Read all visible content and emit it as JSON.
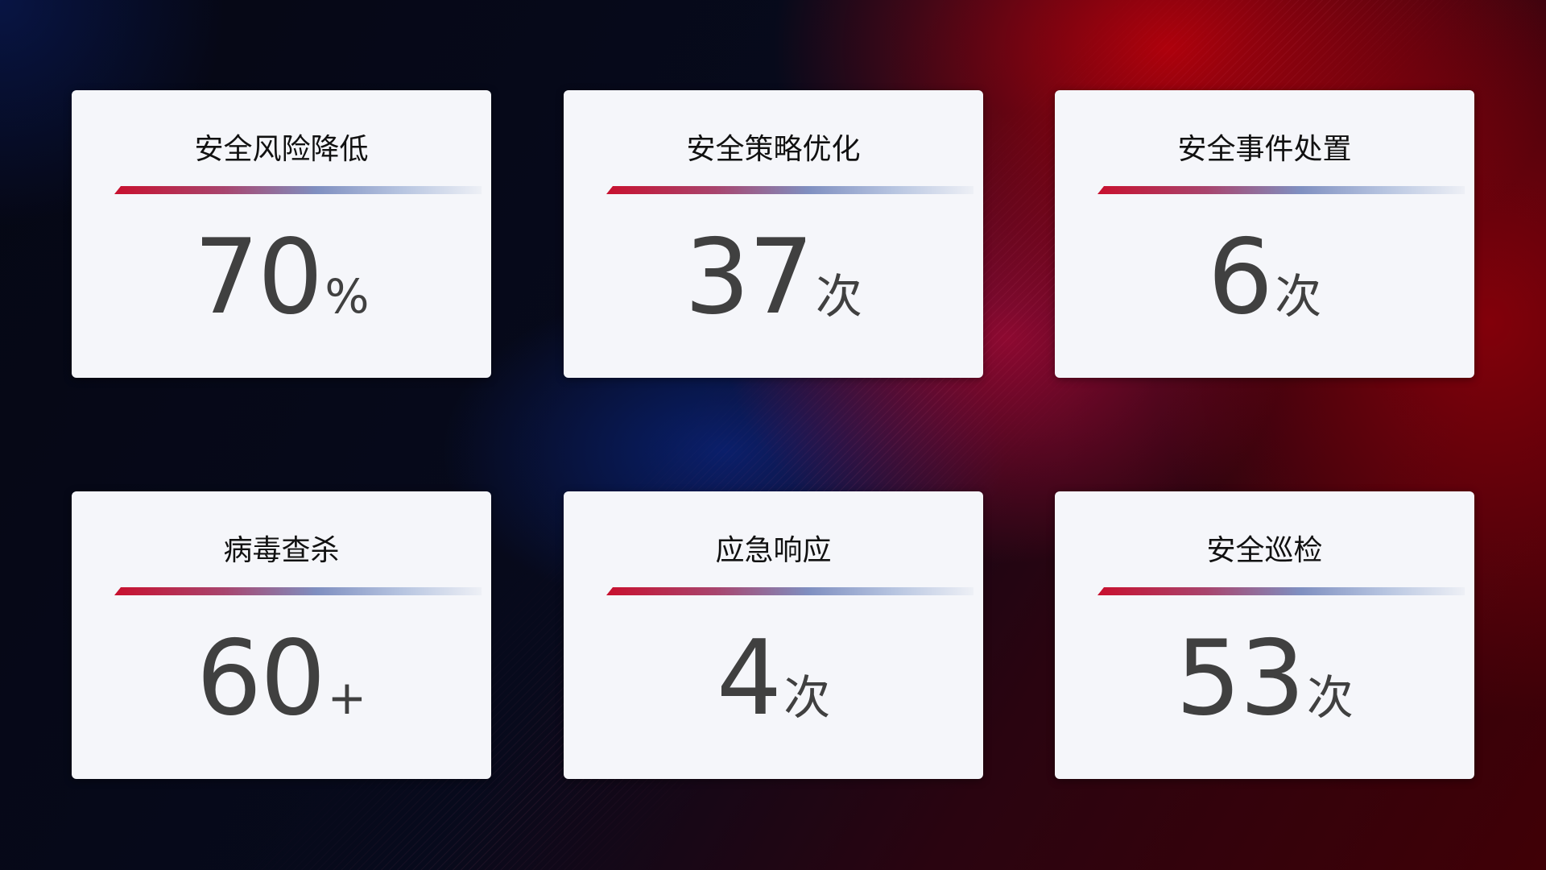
{
  "colors": {
    "bar_start": "#c8102e",
    "bar_mid": "#7f8fc0",
    "card_bg": "#f5f6fa",
    "value_text": "#404040"
  },
  "cards": [
    {
      "title": "安全风险降低",
      "value": "70",
      "unit": "%"
    },
    {
      "title": "安全策略优化",
      "value": "37",
      "unit": "次"
    },
    {
      "title": "安全事件处置",
      "value": "6",
      "unit": "次"
    },
    {
      "title": "病毒查杀",
      "value": "60",
      "unit": "+"
    },
    {
      "title": "应急响应",
      "value": "4",
      "unit": "次"
    },
    {
      "title": "安全巡检",
      "value": "53",
      "unit": "次"
    }
  ]
}
